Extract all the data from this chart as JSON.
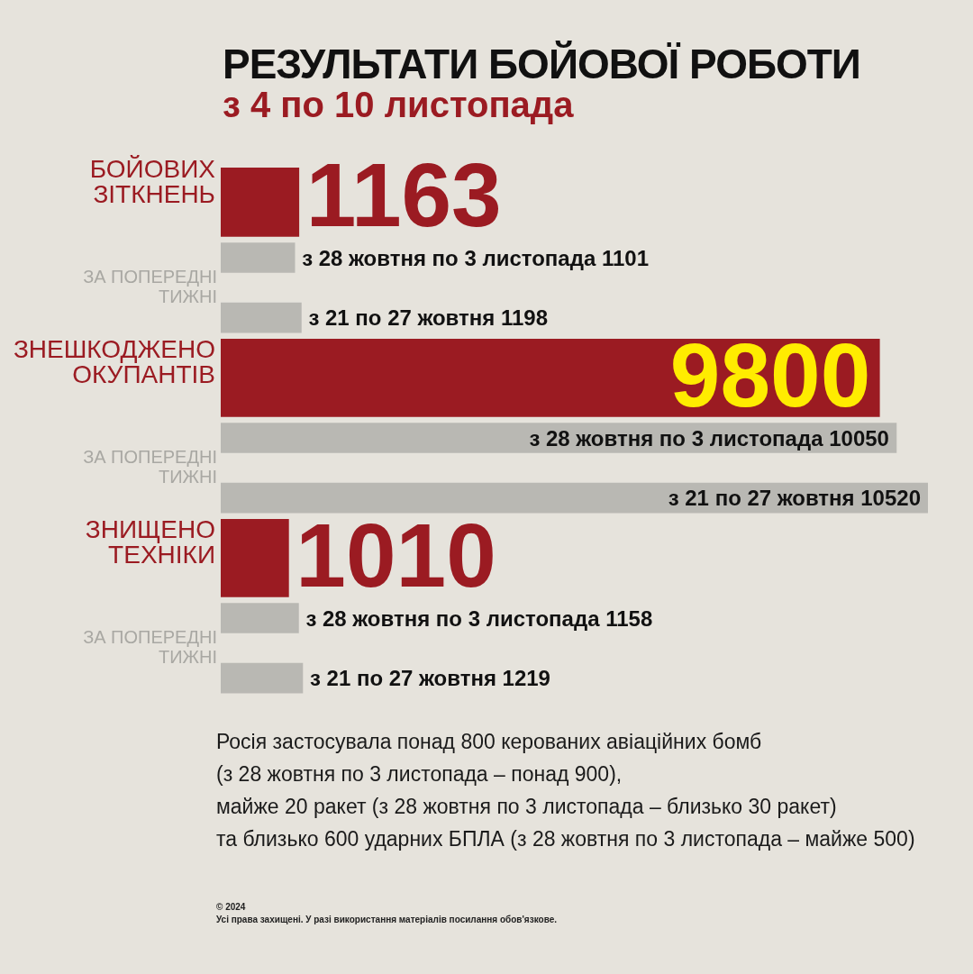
{
  "chart_data": {
    "type": "bar",
    "orientation": "horizontal",
    "title": "РЕЗУЛЬТАТИ БОЙОВОЇ РОБОТИ",
    "subtitle": "з 4 по 10 листопада",
    "categories": [
      "БОЙОВИХ ЗІТКНЕНЬ",
      "ЗНЕШКОДЖЕНО ОКУПАНТІВ",
      "ЗНИЩЕНО ТЕХНІКИ"
    ],
    "series": [
      {
        "color": "#9b1b22",
        "values": [
          1163,
          9800,
          1010
        ],
        "value_labels": [
          "1163",
          "9800",
          "1010"
        ]
      },
      {
        "color": "#b9b8b3",
        "values": [
          1101,
          10050,
          1158
        ],
        "value_labels": [
          "з 28 жовтня по 3 листопада 1101",
          "з 28 жовтня по 3 листопада 10050",
          "з 28 жовтня по 3 листопада 1158"
        ]
      },
      {
        "color": "#b9b8b3",
        "values": [
          1198,
          10520,
          1219
        ],
        "value_labels": [
          "з 21 по 27 жовтня 1198",
          "з 21 по 27 жовтня 10520",
          "з 21 по 27 жовтня 1219"
        ]
      }
    ],
    "legend": false,
    "grid": false,
    "annotations": [
      "ЗА ПОПЕРЕДНІ ТИЖНІ",
      "ЗА ПОПЕРЕДНІ ТИЖНІ",
      "ЗА ПОПЕРЕДНІ ТИЖНІ",
      "Росія застосувала понад 800 керованих авіаційних бомб",
      "(з 28 жовтня по 3 листопада – понад 900),",
      "майже 20 ракет (з 28 жовтня по 3 листопада – близько 30 ракет)",
      "та близько 600 ударних БПЛА (з 28 жовтня по 3 листопада – майже 500)",
      "© 2024",
      "Усі права захищені. У разі використання матеріалів посилання обов'язкове."
    ]
  }
}
